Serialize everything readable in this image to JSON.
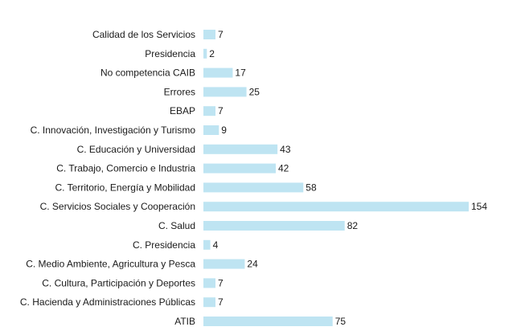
{
  "chart_data": {
    "type": "bar",
    "orientation": "horizontal",
    "categories": [
      "Calidad de los Servicios",
      "Presidencia",
      "No competencia CAIB",
      "Errores",
      "EBAP",
      "C. Innovación, Investigación y Turismo",
      "C. Educación y Universidad",
      "C. Trabajo, Comercio e Industria",
      "C. Territorio, Energía y Mobilidad",
      "C. Servicios Sociales y Cooperación",
      "C. Salud",
      "C. Presidencia",
      "C. Medio Ambiente, Agricultura y Pesca",
      "C. Cultura, Participación y Deportes",
      "C. Hacienda y Administraciones Públicas",
      "ATIB"
    ],
    "values": [
      7,
      2,
      17,
      25,
      7,
      9,
      43,
      42,
      58,
      154,
      82,
      4,
      24,
      7,
      7,
      75
    ],
    "xlim": [
      0,
      154
    ],
    "grid": false,
    "legend": "none",
    "bar_color": "#bee4f2"
  }
}
